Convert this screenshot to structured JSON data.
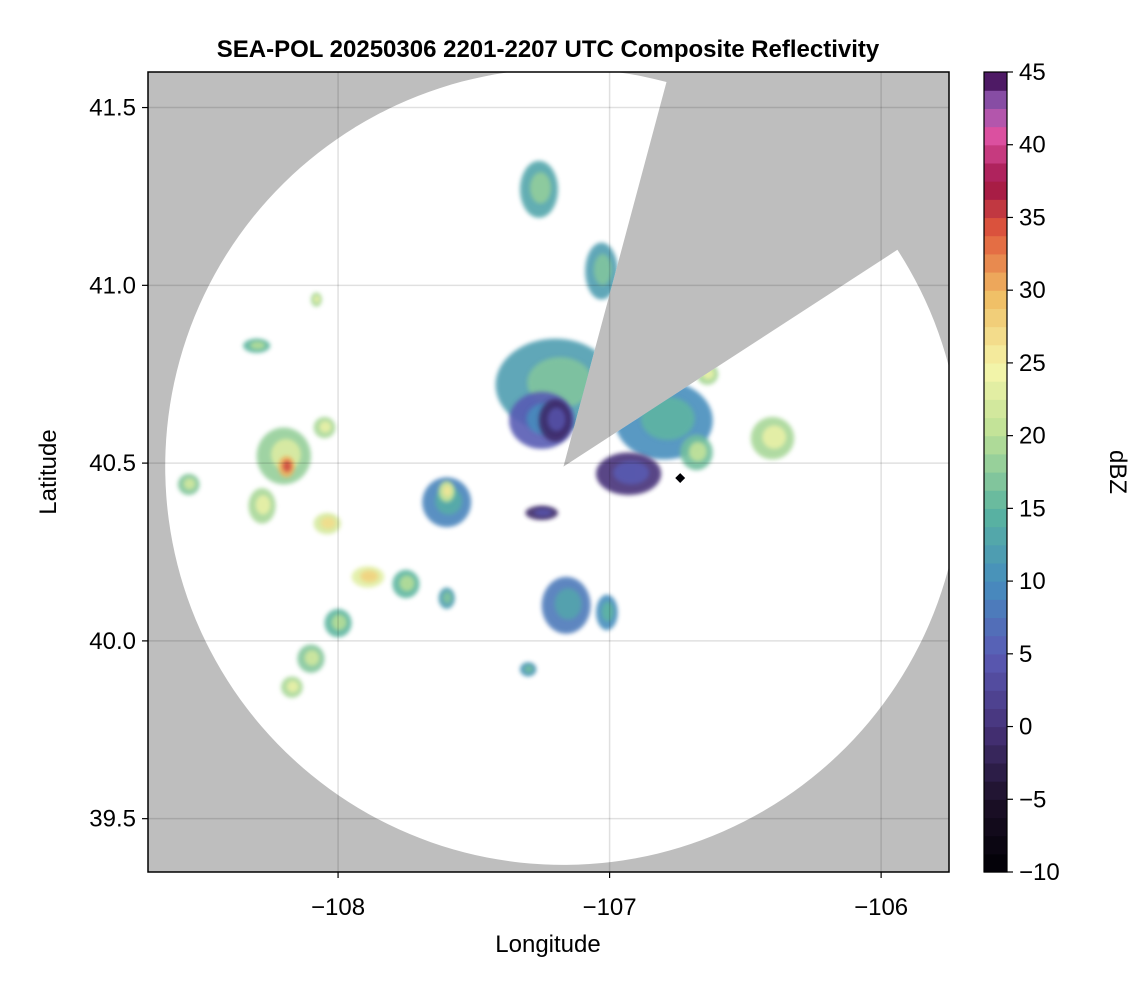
{
  "chart_data": {
    "type": "heatmap",
    "title": "SEA-POL 20250306 2201-2207 UTC Composite Reflectivity",
    "xlabel": "Longitude",
    "ylabel": "Latitude",
    "xlim": [
      -108.7,
      -105.75
    ],
    "ylim": [
      39.35,
      41.6
    ],
    "xticks": [
      -108,
      -107,
      -106
    ],
    "xtick_labels": [
      "−108",
      "−107",
      "−106"
    ],
    "yticks": [
      39.5,
      40.0,
      40.5,
      41.0,
      41.5
    ],
    "ytick_labels": [
      "39.5",
      "40.0",
      "40.5",
      "41.0",
      "41.5"
    ],
    "grid": true,
    "background_color": "#bebebe",
    "coverage_color": "#ffffff",
    "radar_center": {
      "lon": -107.17,
      "lat": 40.49
    },
    "radar_range_deg_lat": 1.12,
    "blocked_sector_bearing_deg": [
      15,
      57
    ],
    "colorbar": {
      "label": "dBZ",
      "range": [
        -10,
        45
      ],
      "ticks": [
        -10,
        -5,
        0,
        5,
        10,
        15,
        20,
        25,
        30,
        35,
        40,
        45
      ],
      "tick_labels": [
        "−10",
        "−5",
        "0",
        "5",
        "10",
        "15",
        "20",
        "25",
        "30",
        "35",
        "40",
        "45"
      ],
      "levels": 44,
      "colormap": "spectral-magma (black → purple → blue → green → yellow → orange → red → pink → violet)"
    },
    "echo_cells": [
      {
        "lon": -107.2,
        "lat": 40.72,
        "rx": 0.22,
        "ry": 0.13,
        "dbz": 15
      },
      {
        "lon": -107.25,
        "lat": 40.62,
        "rx": 0.12,
        "ry": 0.08,
        "dbz": 8
      },
      {
        "lon": -107.2,
        "lat": 40.62,
        "rx": 0.06,
        "ry": 0.06,
        "dbz": 2
      },
      {
        "lon": -107.26,
        "lat": 41.27,
        "rx": 0.07,
        "ry": 0.08,
        "dbz": 16
      },
      {
        "lon": -107.03,
        "lat": 41.04,
        "rx": 0.06,
        "ry": 0.08,
        "dbz": 15
      },
      {
        "lon": -106.8,
        "lat": 40.62,
        "rx": 0.18,
        "ry": 0.11,
        "dbz": 13
      },
      {
        "lon": -106.93,
        "lat": 40.47,
        "rx": 0.12,
        "ry": 0.06,
        "dbz": 3
      },
      {
        "lon": -106.68,
        "lat": 40.53,
        "rx": 0.06,
        "ry": 0.05,
        "dbz": 19
      },
      {
        "lon": -106.4,
        "lat": 40.57,
        "rx": 0.08,
        "ry": 0.06,
        "dbz": 22
      },
      {
        "lon": -106.64,
        "lat": 40.75,
        "rx": 0.04,
        "ry": 0.03,
        "dbz": 22
      },
      {
        "lon": -107.6,
        "lat": 40.39,
        "rx": 0.09,
        "ry": 0.07,
        "dbz": 12
      },
      {
        "lon": -107.6,
        "lat": 40.42,
        "rx": 0.03,
        "ry": 0.03,
        "dbz": 24
      },
      {
        "lon": -107.25,
        "lat": 40.36,
        "rx": 0.06,
        "ry": 0.02,
        "dbz": 2
      },
      {
        "lon": -108.2,
        "lat": 40.52,
        "rx": 0.1,
        "ry": 0.08,
        "dbz": 21
      },
      {
        "lon": -108.19,
        "lat": 40.49,
        "rx": 0.03,
        "ry": 0.03,
        "dbz": 33
      },
      {
        "lon": -108.05,
        "lat": 40.6,
        "rx": 0.04,
        "ry": 0.03,
        "dbz": 22
      },
      {
        "lon": -108.28,
        "lat": 40.38,
        "rx": 0.05,
        "ry": 0.05,
        "dbz": 22
      },
      {
        "lon": -108.04,
        "lat": 40.33,
        "rx": 0.05,
        "ry": 0.03,
        "dbz": 25
      },
      {
        "lon": -107.89,
        "lat": 40.18,
        "rx": 0.06,
        "ry": 0.03,
        "dbz": 26
      },
      {
        "lon": -108.0,
        "lat": 40.05,
        "rx": 0.05,
        "ry": 0.04,
        "dbz": 18
      },
      {
        "lon": -108.1,
        "lat": 39.95,
        "rx": 0.05,
        "ry": 0.04,
        "dbz": 20
      },
      {
        "lon": -108.17,
        "lat": 39.87,
        "rx": 0.04,
        "ry": 0.03,
        "dbz": 22
      },
      {
        "lon": -108.3,
        "lat": 40.83,
        "rx": 0.05,
        "ry": 0.02,
        "dbz": 18
      },
      {
        "lon": -108.08,
        "lat": 40.96,
        "rx": 0.02,
        "ry": 0.02,
        "dbz": 22
      },
      {
        "lon": -108.55,
        "lat": 40.44,
        "rx": 0.04,
        "ry": 0.03,
        "dbz": 20
      },
      {
        "lon": -107.16,
        "lat": 40.1,
        "rx": 0.09,
        "ry": 0.08,
        "dbz": 11
      },
      {
        "lon": -107.01,
        "lat": 40.08,
        "rx": 0.04,
        "ry": 0.05,
        "dbz": 13
      },
      {
        "lon": -107.3,
        "lat": 39.92,
        "rx": 0.03,
        "ry": 0.02,
        "dbz": 14
      },
      {
        "lon": -107.6,
        "lat": 40.12,
        "rx": 0.03,
        "ry": 0.03,
        "dbz": 15
      },
      {
        "lon": -107.75,
        "lat": 40.16,
        "rx": 0.05,
        "ry": 0.04,
        "dbz": 18
      },
      {
        "lon": -106.74,
        "lat": 40.46,
        "rx": 0.01,
        "ry": 0.01,
        "dbz": -10
      }
    ]
  }
}
